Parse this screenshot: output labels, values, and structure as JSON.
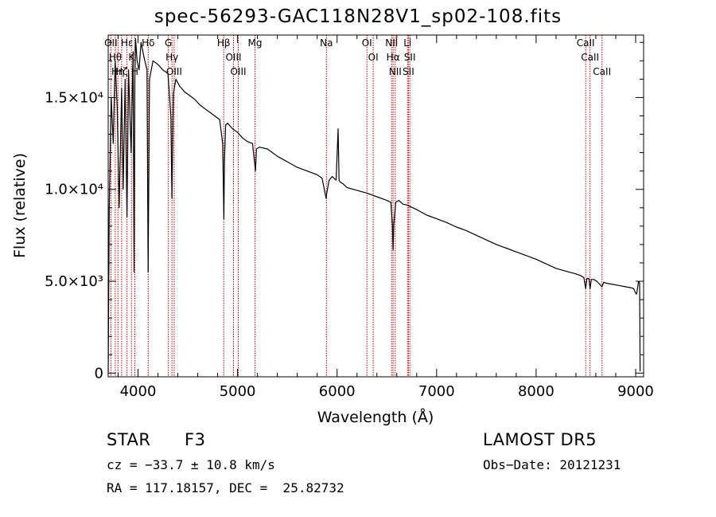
{
  "chart_data": {
    "type": "line",
    "title": "spec-56293-GAC118N28V1_sp02-108.fits",
    "xlabel": "Wavelength (Å)",
    "ylabel": "Flux (relative)",
    "xlim": [
      3700,
      9080
    ],
    "ylim": [
      -200,
      18400
    ],
    "x_ticks": [
      {
        "value": 4000,
        "label": "4000"
      },
      {
        "value": 5000,
        "label": "5000"
      },
      {
        "value": 6000,
        "label": "6000"
      },
      {
        "value": 7000,
        "label": "7000"
      },
      {
        "value": 8000,
        "label": "8000"
      },
      {
        "value": 9000,
        "label": "9000"
      }
    ],
    "y_ticks": [
      {
        "value": 0,
        "label": "0"
      },
      {
        "value": 5000,
        "label": "5.0×10³"
      },
      {
        "value": 10000,
        "label": "1.0×10⁴"
      },
      {
        "value": 15000,
        "label": "1.5×10⁴"
      }
    ],
    "series": [
      {
        "x": [
          3700,
          3710,
          3730,
          3750,
          3770,
          3790,
          3810,
          3835,
          3850,
          3870,
          3889,
          3905,
          3930,
          3950,
          3960,
          3968,
          3975,
          3990,
          4010,
          4030,
          4060,
          4090,
          4101,
          4115,
          4150,
          4200,
          4250,
          4300,
          4330,
          4340,
          4355,
          4380,
          4420,
          4470,
          4520,
          4570,
          4620,
          4670,
          4720,
          4770,
          4820,
          4850,
          4862,
          4868,
          4880,
          4900,
          4950,
          5000,
          5050,
          5100,
          5150,
          5170,
          5180,
          5190,
          5220,
          5300,
          5400,
          5500,
          5600,
          5700,
          5800,
          5850,
          5890,
          5896,
          5920,
          5950,
          5990,
          6010,
          6020,
          6030,
          6060,
          6100,
          6200,
          6300,
          6400,
          6500,
          6540,
          6556,
          6563,
          6570,
          6590,
          6620,
          6660,
          6700,
          6800,
          6900,
          7000,
          7100,
          7200,
          7300,
          7400,
          7500,
          7600,
          7700,
          7800,
          7900,
          8000,
          8100,
          8200,
          8300,
          8400,
          8450,
          8480,
          8498,
          8510,
          8530,
          8542,
          8555,
          8580,
          8610,
          8662,
          8680,
          8700,
          8750,
          8800,
          8850,
          8900,
          8950,
          8980,
          9000,
          9010,
          9030,
          9040,
          9045
        ],
        "y": [
          0,
          9000,
          15000,
          12500,
          17000,
          14500,
          9000,
          15500,
          10000,
          16000,
          8500,
          16500,
          12000,
          17500,
          5500,
          16000,
          18200,
          17000,
          16500,
          18000,
          17200,
          16500,
          5500,
          16000,
          17000,
          16800,
          16500,
          16300,
          14000,
          9500,
          15200,
          16000,
          15600,
          15300,
          15100,
          14900,
          14600,
          14400,
          14200,
          14000,
          13800,
          12500,
          8400,
          11500,
          13500,
          13600,
          13300,
          13100,
          12800,
          12600,
          12500,
          11500,
          11000,
          12200,
          12300,
          12200,
          11800,
          11500,
          11200,
          11000,
          10800,
          10600,
          9500,
          9800,
          10500,
          10700,
          10500,
          13300,
          10500,
          10400,
          10300,
          10100,
          9950,
          9800,
          9600,
          9400,
          9300,
          8000,
          6700,
          8100,
          9300,
          9400,
          9200,
          9150,
          8900,
          8600,
          8400,
          8200,
          7950,
          7750,
          7500,
          7250,
          7000,
          6800,
          6600,
          6400,
          6200,
          5950,
          5700,
          5550,
          5400,
          5300,
          5200,
          4600,
          5150,
          5150,
          4600,
          5100,
          5100,
          5000,
          4700,
          4950,
          4900,
          4850,
          4800,
          4750,
          4700,
          4650,
          4600,
          4350,
          4300,
          5000,
          4900,
          100
        ]
      }
    ],
    "lines": [
      {
        "x": 3727,
        "label": "OII"
      },
      {
        "x": 3771,
        "label": "Hθ"
      },
      {
        "x": 3798,
        "label": "Hη"
      },
      {
        "x": 3835,
        "label": "Hζ"
      },
      {
        "x": 3889,
        "label": "Hε"
      },
      {
        "x": 3934,
        "label": "K"
      },
      {
        "x": 3968,
        "label": "H"
      },
      {
        "x": 4102,
        "label": "Hδ"
      },
      {
        "x": 4305,
        "label": "G"
      },
      {
        "x": 4341,
        "label": "Hγ"
      },
      {
        "x": 4363,
        "label": "OIII"
      },
      {
        "x": 4861,
        "label": "Hβ"
      },
      {
        "x": 4959,
        "label": "OIII"
      },
      {
        "x": 5007,
        "label": "OIII"
      },
      {
        "x": 5175,
        "label": "Mg"
      },
      {
        "x": 5893,
        "label": "Na"
      },
      {
        "x": 6300,
        "label": "OI"
      },
      {
        "x": 6363,
        "label": "OI"
      },
      {
        "x": 6548,
        "label": "NII"
      },
      {
        "x": 6563,
        "label": "Hα"
      },
      {
        "x": 6584,
        "label": "NII"
      },
      {
        "x": 6708,
        "label": "Li"
      },
      {
        "x": 6717,
        "label": "SII"
      },
      {
        "x": 6731,
        "label": "SII"
      },
      {
        "x": 8498,
        "label": "CaII"
      },
      {
        "x": 8542,
        "label": "CaII"
      },
      {
        "x": 8662,
        "label": "CaII"
      }
    ]
  },
  "info": {
    "class_label": "STAR",
    "subclass": "F3",
    "survey": "LAMOST DR5",
    "cz": "cz = −33.7 ± 10.8 km/s",
    "obs_date": "Obs−Date: 20121231",
    "coords": "RA = 117.18157, DEC =  25.82732"
  },
  "colors": {
    "spectrum": "#000000",
    "lines": "#cc0000",
    "axes": "#000000"
  }
}
